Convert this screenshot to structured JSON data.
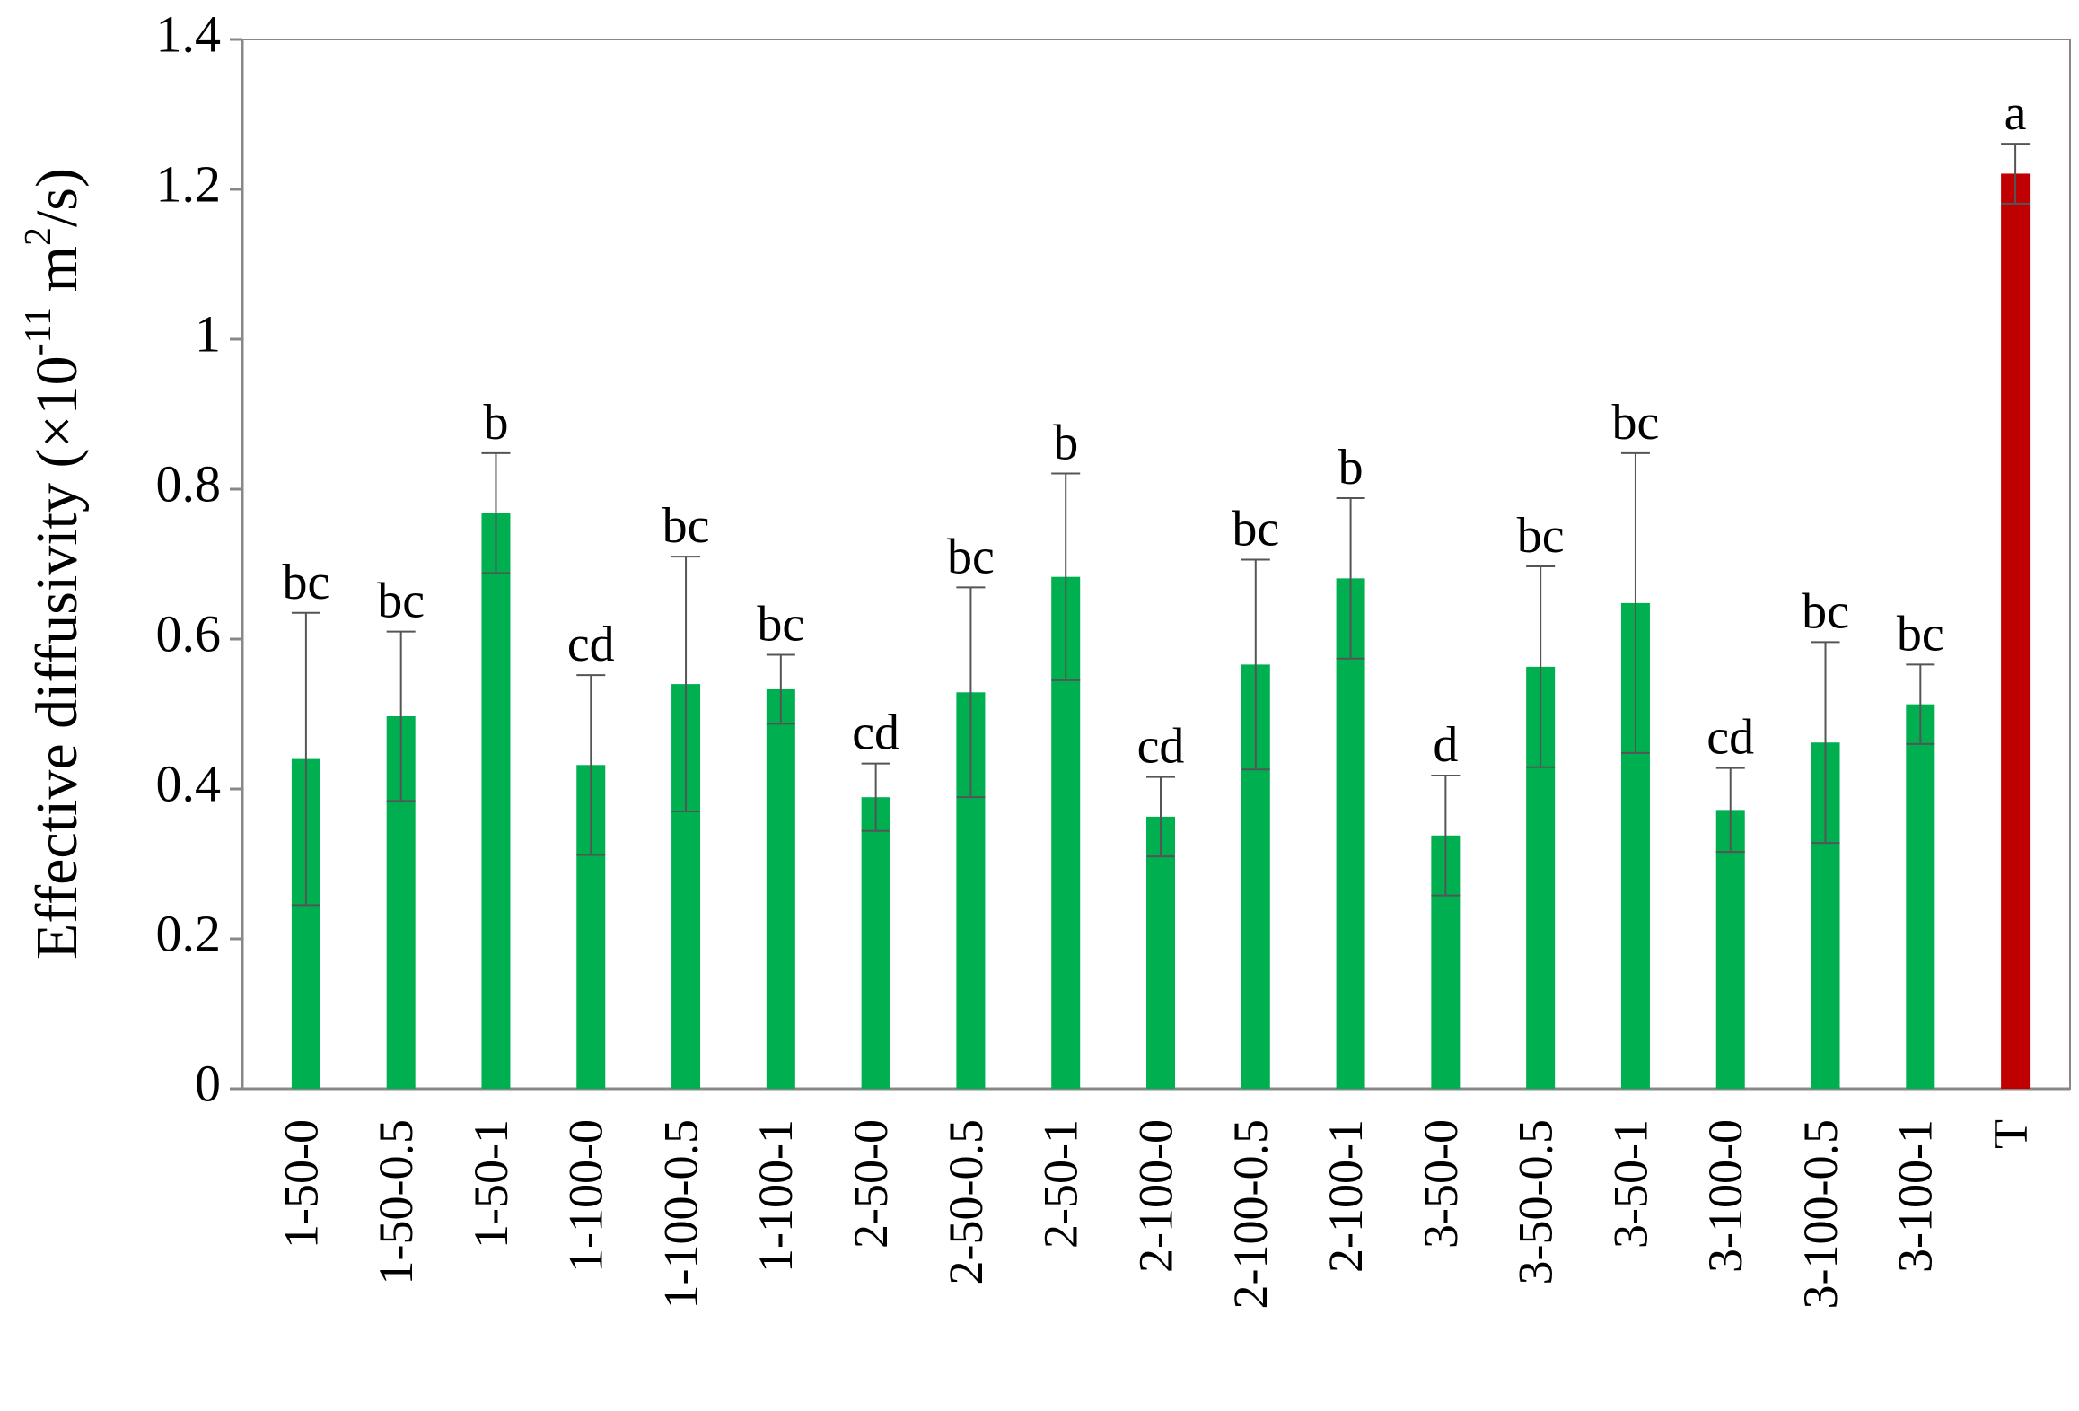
{
  "chart_data": {
    "type": "bar",
    "ylabel_parts": [
      "Effective diffusivity (×10",
      "-11",
      " m",
      "2",
      "/s)"
    ],
    "categories": [
      "1-50-0",
      "1-50-0.5",
      "1-50-1",
      "1-100-0",
      "1-100-0.5",
      "1-100-1",
      "2-50-0",
      "2-50-0.5",
      "2-50-1",
      "2-100-0",
      "2-100-0.5",
      "2-100-1",
      "3-50-0",
      "3-50-0.5",
      "3-50-1",
      "3-100-0",
      "3-100-0.5",
      "3-100-1",
      "T"
    ],
    "values": [
      0.44,
      0.497,
      0.768,
      0.432,
      0.54,
      0.533,
      0.389,
      0.529,
      0.683,
      0.363,
      0.566,
      0.681,
      0.338,
      0.563,
      0.648,
      0.372,
      0.462,
      0.513,
      1.221
    ],
    "errors": [
      0.195,
      0.113,
      0.08,
      0.12,
      0.17,
      0.046,
      0.045,
      0.14,
      0.138,
      0.053,
      0.14,
      0.107,
      0.08,
      0.134,
      0.2,
      0.056,
      0.134,
      0.053,
      0.04
    ],
    "annotations": [
      "bc",
      "bc",
      "b",
      "cd",
      "bc",
      "bc",
      "cd",
      "bc",
      "b",
      "cd",
      "bc",
      "b",
      "d",
      "bc",
      "bc",
      "cd",
      "bc",
      "bc",
      "a"
    ],
    "colors": [
      "#00b050",
      "#00b050",
      "#00b050",
      "#00b050",
      "#00b050",
      "#00b050",
      "#00b050",
      "#00b050",
      "#00b050",
      "#00b050",
      "#00b050",
      "#00b050",
      "#00b050",
      "#00b050",
      "#00b050",
      "#00b050",
      "#00b050",
      "#00b050",
      "#c00000"
    ],
    "ylim": [
      0,
      1.4
    ],
    "yticks": [
      0,
      0.2,
      0.4,
      0.6,
      0.8,
      1,
      1.2,
      1.4
    ],
    "grid": false
  }
}
